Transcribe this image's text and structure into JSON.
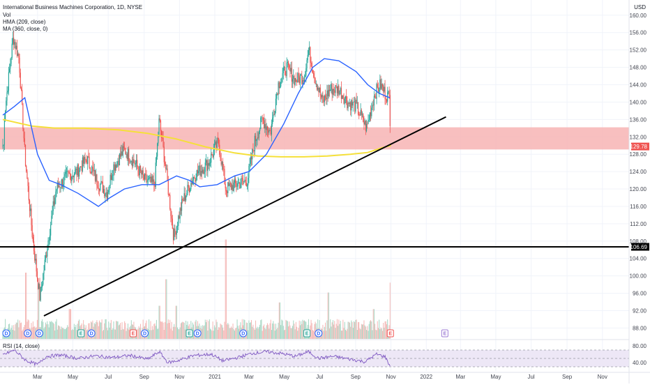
{
  "chart_data": {
    "type": "candlestick",
    "title": "International Business Machines Corporation, 1D, NYSE",
    "currency": "USD",
    "legend": {
      "vol": "Vol",
      "hma": "HMA (209, close)",
      "ma": "MA (360, close, 0)",
      "rsi": "RSI (14, close)"
    },
    "y_axis": {
      "ticks": [
        88,
        92,
        96,
        100,
        104,
        108,
        112,
        116,
        120,
        124,
        128,
        132,
        136,
        140,
        144,
        148,
        152,
        156,
        160
      ],
      "tick_labels": [
        "88.00",
        "92.00",
        "96.00",
        "100.00",
        "104.00",
        "108.00",
        "112.00",
        "116.00",
        "120.00",
        "124.00",
        "128.00",
        "132.00",
        "136.00",
        "140.00",
        "144.00",
        "148.00",
        "152.00",
        "156.00",
        "160.00"
      ],
      "range": [
        85.5,
        163.5
      ]
    },
    "rsi_axis": {
      "tick_labels": [
        "80.00",
        "40.00"
      ],
      "band": [
        30,
        70
      ],
      "range": [
        20,
        90
      ]
    },
    "x_axis": {
      "labels": [
        "Mar",
        "May",
        "Jul",
        "Sep",
        "Nov",
        "2021",
        "Mar",
        "May",
        "Jul",
        "Sep",
        "Nov",
        "2022",
        "Mar",
        "May",
        "Jul",
        "Sep",
        "Nov"
      ],
      "label_days": [
        60,
        121,
        182,
        244,
        305,
        366,
        425,
        486,
        547,
        609,
        670,
        731,
        790,
        851,
        912,
        974,
        1035
      ]
    },
    "last_price": {
      "value": 129.78,
      "label": "129.78"
    },
    "horizontal_line": {
      "value": 106.69,
      "label": "106.69"
    },
    "resistance_zone": [
      129.1,
      134.2
    ],
    "trendline": {
      "from": {
        "day": 71,
        "price": 90.8
      },
      "to": {
        "day": 765,
        "price": 136.6
      }
    },
    "key_points": [
      {
        "day": 2,
        "price": 136
      },
      {
        "day": 18,
        "price": 155
      },
      {
        "day": 28,
        "price": 150
      },
      {
        "day": 38,
        "price": 128
      },
      {
        "day": 52,
        "price": 108
      },
      {
        "day": 64,
        "price": 95
      },
      {
        "day": 78,
        "price": 108
      },
      {
        "day": 92,
        "price": 120
      },
      {
        "day": 112,
        "price": 123
      },
      {
        "day": 128,
        "price": 124
      },
      {
        "day": 145,
        "price": 127
      },
      {
        "day": 162,
        "price": 122
      },
      {
        "day": 180,
        "price": 119
      },
      {
        "day": 190,
        "price": 125
      },
      {
        "day": 210,
        "price": 129
      },
      {
        "day": 228,
        "price": 126
      },
      {
        "day": 245,
        "price": 122
      },
      {
        "day": 262,
        "price": 121
      },
      {
        "day": 270,
        "price": 136
      },
      {
        "day": 282,
        "price": 124
      },
      {
        "day": 295,
        "price": 109
      },
      {
        "day": 310,
        "price": 117
      },
      {
        "day": 330,
        "price": 123
      },
      {
        "day": 355,
        "price": 126
      },
      {
        "day": 372,
        "price": 131
      },
      {
        "day": 385,
        "price": 120
      },
      {
        "day": 402,
        "price": 121
      },
      {
        "day": 422,
        "price": 122
      },
      {
        "day": 435,
        "price": 131
      },
      {
        "day": 448,
        "price": 136
      },
      {
        "day": 462,
        "price": 133
      },
      {
        "day": 475,
        "price": 144
      },
      {
        "day": 490,
        "price": 148
      },
      {
        "day": 505,
        "price": 145
      },
      {
        "day": 520,
        "price": 146
      },
      {
        "day": 528,
        "price": 152
      },
      {
        "day": 538,
        "price": 146
      },
      {
        "day": 552,
        "price": 140
      },
      {
        "day": 565,
        "price": 143
      },
      {
        "day": 580,
        "price": 143
      },
      {
        "day": 595,
        "price": 140
      },
      {
        "day": 610,
        "price": 139
      },
      {
        "day": 628,
        "price": 134
      },
      {
        "day": 642,
        "price": 142
      },
      {
        "day": 652,
        "price": 144
      },
      {
        "day": 660,
        "price": 142
      },
      {
        "day": 668,
        "price": 141
      },
      {
        "day": 669,
        "price": 130
      }
    ],
    "hma_points": [
      {
        "day": 0,
        "price": 137
      },
      {
        "day": 20,
        "price": 139
      },
      {
        "day": 38,
        "price": 141
      },
      {
        "day": 60,
        "price": 128
      },
      {
        "day": 80,
        "price": 122
      },
      {
        "day": 100,
        "price": 121
      },
      {
        "day": 130,
        "price": 119
      },
      {
        "day": 165,
        "price": 116
      },
      {
        "day": 185,
        "price": 118
      },
      {
        "day": 210,
        "price": 120
      },
      {
        "day": 240,
        "price": 121
      },
      {
        "day": 270,
        "price": 121
      },
      {
        "day": 300,
        "price": 123
      },
      {
        "day": 322,
        "price": 122
      },
      {
        "day": 340,
        "price": 120.5
      },
      {
        "day": 370,
        "price": 121
      },
      {
        "day": 400,
        "price": 123
      },
      {
        "day": 425,
        "price": 124
      },
      {
        "day": 455,
        "price": 128
      },
      {
        "day": 485,
        "price": 135
      },
      {
        "day": 510,
        "price": 142
      },
      {
        "day": 535,
        "price": 148
      },
      {
        "day": 555,
        "price": 150
      },
      {
        "day": 580,
        "price": 149.5
      },
      {
        "day": 610,
        "price": 147
      },
      {
        "day": 630,
        "price": 144
      },
      {
        "day": 650,
        "price": 142
      },
      {
        "day": 668,
        "price": 141
      }
    ],
    "ma_points": [
      {
        "day": 0,
        "price": 136
      },
      {
        "day": 50,
        "price": 134.5
      },
      {
        "day": 90,
        "price": 134
      },
      {
        "day": 140,
        "price": 134
      },
      {
        "day": 200,
        "price": 133.6
      },
      {
        "day": 250,
        "price": 132.8
      },
      {
        "day": 300,
        "price": 131.5
      },
      {
        "day": 350,
        "price": 129.7
      },
      {
        "day": 400,
        "price": 128.3
      },
      {
        "day": 440,
        "price": 127.6
      },
      {
        "day": 480,
        "price": 127.4
      },
      {
        "day": 520,
        "price": 127.4
      },
      {
        "day": 560,
        "price": 127.6
      },
      {
        "day": 600,
        "price": 128
      },
      {
        "day": 630,
        "price": 128.4
      },
      {
        "day": 655,
        "price": 129.5
      },
      {
        "day": 670,
        "price": 130
      }
    ],
    "volume_spikes": [
      {
        "day": 40,
        "vol": 1.0
      },
      {
        "day": 62,
        "vol": 0.8
      },
      {
        "day": 116,
        "vol": 0.45
      },
      {
        "day": 270,
        "vol": 0.5
      },
      {
        "day": 282,
        "vol": 0.9
      },
      {
        "day": 300,
        "vol": 0.5
      },
      {
        "day": 385,
        "vol": 1.5
      },
      {
        "day": 478,
        "vol": 0.55
      },
      {
        "day": 562,
        "vol": 0.7
      },
      {
        "day": 640,
        "vol": 0.45
      },
      {
        "day": 669,
        "vol": 0.85
      }
    ],
    "rsi_points": [
      {
        "day": 0,
        "rsi": 58
      },
      {
        "day": 20,
        "rsi": 70
      },
      {
        "day": 40,
        "rsi": 45
      },
      {
        "day": 60,
        "rsi": 35
      },
      {
        "day": 75,
        "rsi": 55
      },
      {
        "day": 100,
        "rsi": 58
      },
      {
        "day": 130,
        "rsi": 50
      },
      {
        "day": 160,
        "rsi": 56
      },
      {
        "day": 190,
        "rsi": 52
      },
      {
        "day": 220,
        "rsi": 57
      },
      {
        "day": 250,
        "rsi": 48
      },
      {
        "day": 270,
        "rsi": 66
      },
      {
        "day": 285,
        "rsi": 40
      },
      {
        "day": 300,
        "rsi": 44
      },
      {
        "day": 330,
        "rsi": 57
      },
      {
        "day": 360,
        "rsi": 60
      },
      {
        "day": 380,
        "rsi": 44
      },
      {
        "day": 405,
        "rsi": 52
      },
      {
        "day": 430,
        "rsi": 62
      },
      {
        "day": 455,
        "rsi": 66
      },
      {
        "day": 480,
        "rsi": 62
      },
      {
        "day": 505,
        "rsi": 55
      },
      {
        "day": 528,
        "rsi": 66
      },
      {
        "day": 545,
        "rsi": 50
      },
      {
        "day": 570,
        "rsi": 55
      },
      {
        "day": 600,
        "rsi": 48
      },
      {
        "day": 625,
        "rsi": 42
      },
      {
        "day": 645,
        "rsi": 60
      },
      {
        "day": 660,
        "rsi": 54
      },
      {
        "day": 669,
        "rsi": 30
      }
    ],
    "events": [
      {
        "day": 6,
        "type": "D"
      },
      {
        "day": 43,
        "type": "D"
      },
      {
        "day": 63,
        "type": "D"
      },
      {
        "day": 135,
        "type": "E"
      },
      {
        "day": 153,
        "type": "D"
      },
      {
        "day": 225,
        "type": "E",
        "red": true
      },
      {
        "day": 245,
        "type": "D"
      },
      {
        "day": 322,
        "type": "E"
      },
      {
        "day": 336,
        "type": "D"
      },
      {
        "day": 415,
        "type": "D"
      },
      {
        "day": 525,
        "type": "E"
      },
      {
        "day": 545,
        "type": "D"
      },
      {
        "day": 669,
        "type": "E",
        "red": true
      },
      {
        "day": 763,
        "type": "E",
        "future": true
      }
    ],
    "colors": {
      "up": "#26a69a",
      "down": "#ef5350",
      "hma": "#2962ff",
      "ma": "#f5e03a",
      "trendline": "#000000",
      "hline": "#000000",
      "zone": "#f7b4b4",
      "rsi": "#7e57c2",
      "rsi_band": "#ede7f6",
      "grid": "#f0f3fa"
    }
  }
}
